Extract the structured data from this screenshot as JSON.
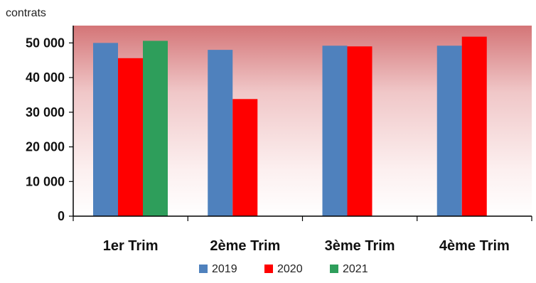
{
  "chart_data": {
    "type": "bar",
    "ylabel": "contrats",
    "categories": [
      "1er Trim",
      "2ème Trim",
      "3ème Trim",
      "4ème Trim"
    ],
    "series": [
      {
        "name": "2019",
        "color": "#4F81BD",
        "values": [
          50000,
          48000,
          49200,
          49200
        ]
      },
      {
        "name": "2020",
        "color": "#FF0000",
        "values": [
          45600,
          33800,
          49000,
          51800
        ]
      },
      {
        "name": "2021",
        "color": "#2E9E5B",
        "values": [
          50600,
          null,
          null,
          null
        ]
      }
    ],
    "ylim": [
      0,
      55000
    ],
    "yticks": [
      "0",
      "10 000",
      "20 000",
      "30 000",
      "40 000",
      "50 000"
    ],
    "ytick_values": [
      0,
      10000,
      20000,
      30000,
      40000,
      50000
    ],
    "legend_position": "bottom",
    "plot_background": "gradient from dark pink at top to white at bottom"
  }
}
